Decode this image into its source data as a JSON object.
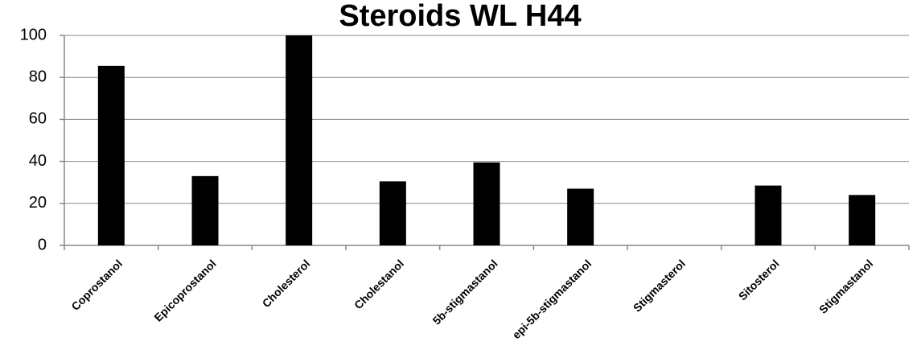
{
  "chart_data": {
    "type": "bar",
    "title": "Steroids WL H44",
    "categories": [
      "Coprostanol",
      "Epicoprostanol",
      "Cholesterol",
      "Cholestanol",
      "5b-stigmastanol",
      "epi-5b-stigmastanol",
      "Stigmasterol",
      "Sitosterol",
      "Stigmastanol"
    ],
    "values": [
      85.5,
      33,
      100,
      30.5,
      39.5,
      27,
      0,
      28.5,
      24
    ],
    "color": "#000000",
    "ylim": [
      0,
      100
    ],
    "yticks": [
      0,
      20,
      40,
      60,
      80,
      100
    ],
    "grid": true
  }
}
